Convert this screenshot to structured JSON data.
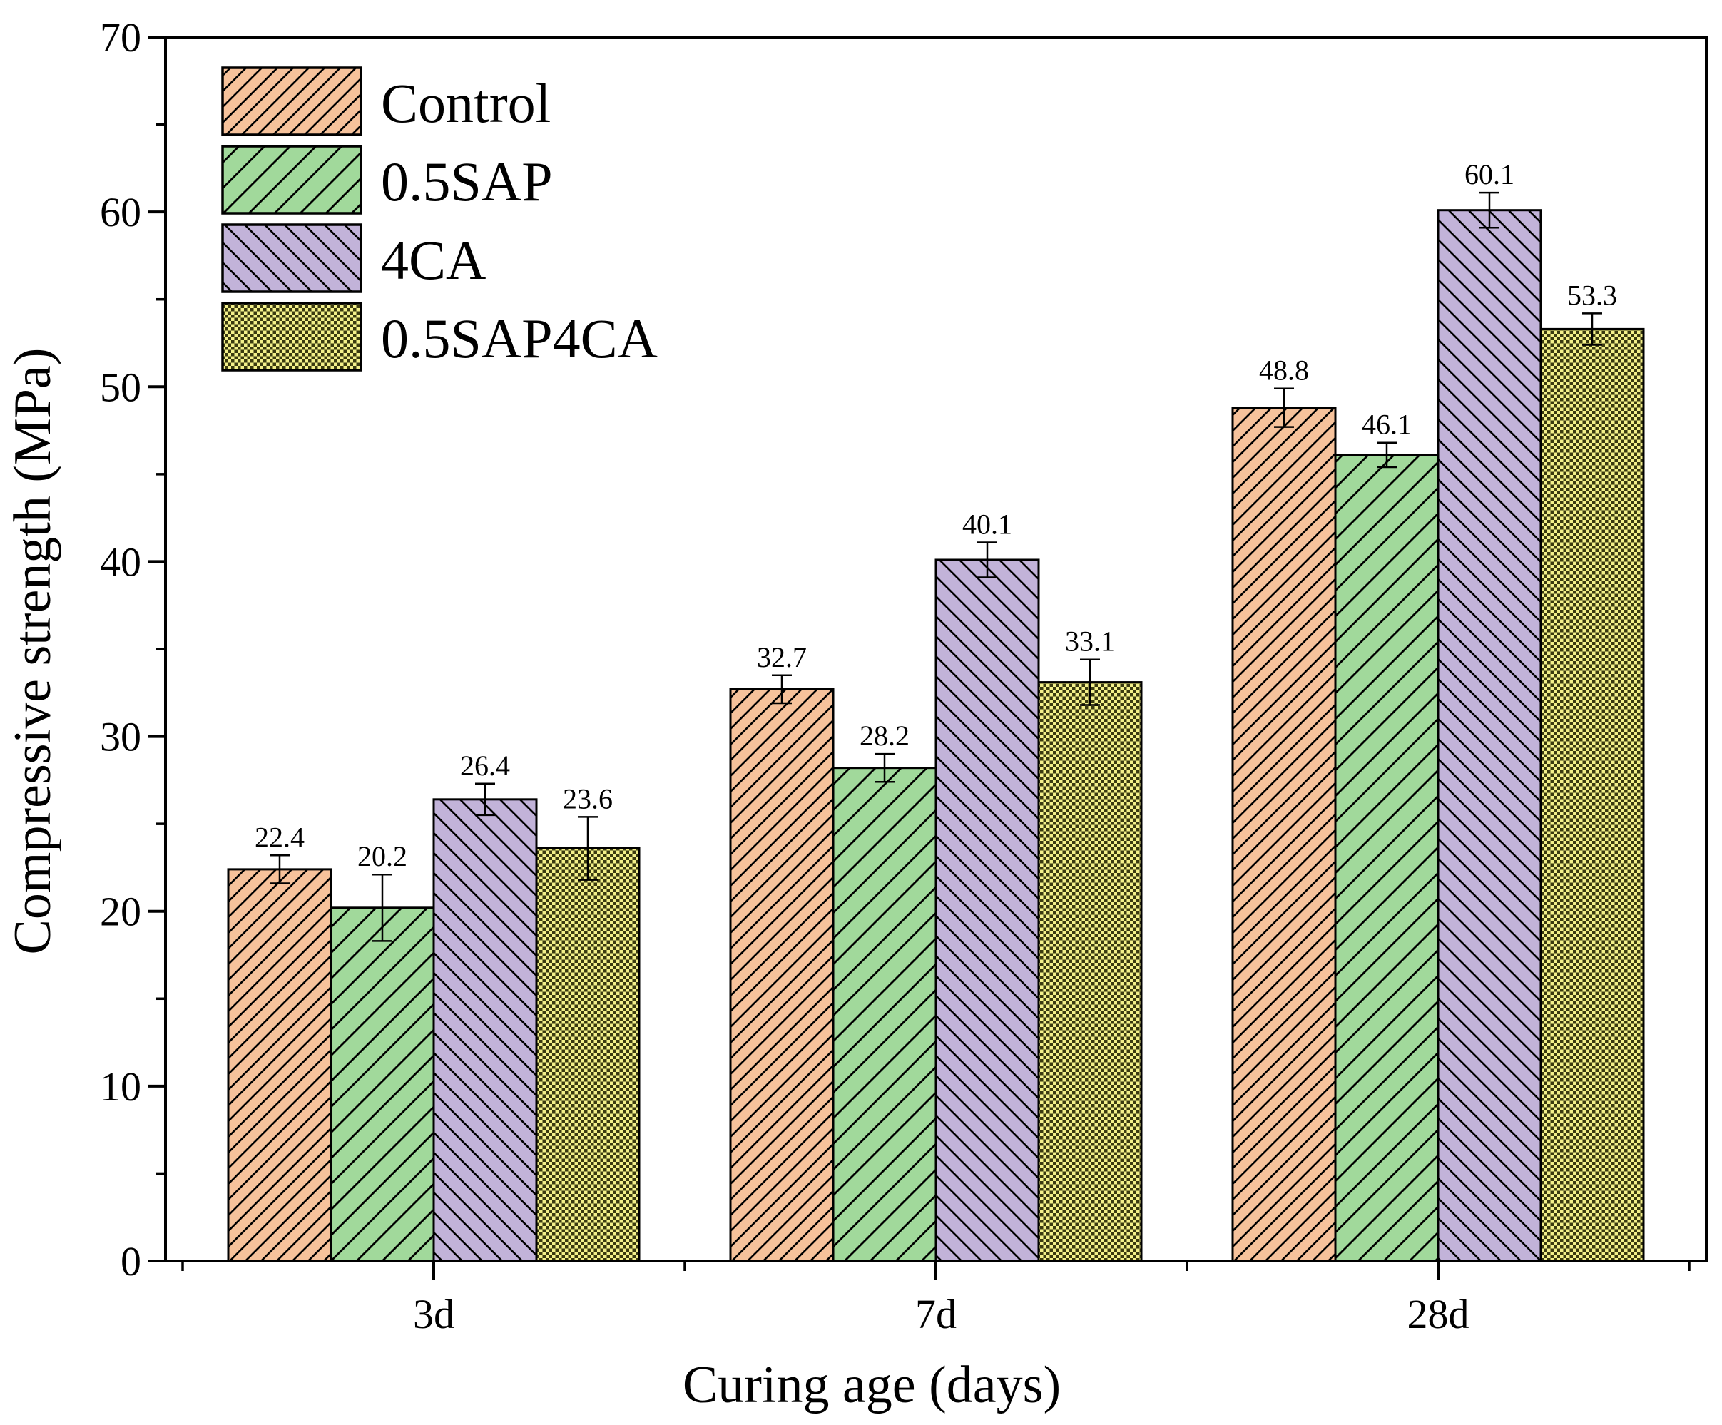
{
  "chart_data": {
    "type": "bar",
    "title": "",
    "xlabel": "Curing age (days)",
    "ylabel": "Compressive strength (MPa)",
    "ylim": [
      0,
      70
    ],
    "yticks": [
      0,
      10,
      20,
      30,
      40,
      50,
      60,
      70
    ],
    "yticks_text": [
      "0",
      "10",
      "20",
      "30",
      "40",
      "50",
      "60",
      "70"
    ],
    "categories": [
      "3d",
      "7d",
      "28d"
    ],
    "legend_position": "top-left",
    "grid": false,
    "series": [
      {
        "name": "Control",
        "values": [
          22.4,
          32.7,
          48.8
        ],
        "errors": [
          0.8,
          0.8,
          1.1
        ],
        "labels": [
          "22.4",
          "32.7",
          "48.8"
        ],
        "color": "#f6c29b",
        "pattern": "diag-right"
      },
      {
        "name": "0.5SAP",
        "values": [
          20.2,
          28.2,
          46.1
        ],
        "errors": [
          1.9,
          0.8,
          0.7
        ],
        "labels": [
          "20.2",
          "28.2",
          "46.1"
        ],
        "color": "#a1d99b",
        "pattern": "diag-right-wide"
      },
      {
        "name": "4CA",
        "values": [
          26.4,
          40.1,
          60.1
        ],
        "errors": [
          0.9,
          1.0,
          1.0
        ],
        "labels": [
          "26.4",
          "40.1",
          "60.1"
        ],
        "color": "#c2b3d9",
        "pattern": "diag-left"
      },
      {
        "name": "0.5SAP4CA",
        "values": [
          23.6,
          33.1,
          53.3
        ],
        "errors": [
          1.8,
          1.3,
          0.9
        ],
        "labels": [
          "23.6",
          "33.1",
          "53.3"
        ],
        "color": "#f3f08a",
        "pattern": "checker"
      }
    ]
  }
}
